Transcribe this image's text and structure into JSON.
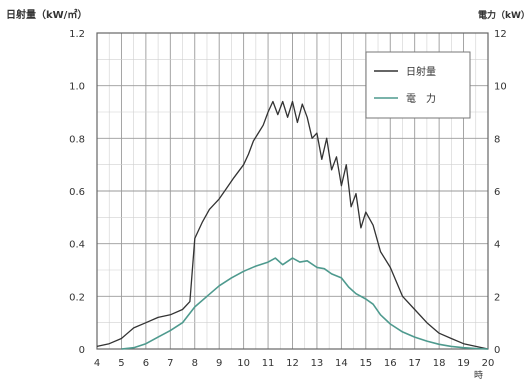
{
  "chart_data": {
    "type": "line",
    "left_axis_label": "日射量（kW/㎡）",
    "right_axis_label": "電力（kW）",
    "x_unit_label": "時",
    "x_ticks": [
      4,
      5,
      6,
      7,
      8,
      9,
      10,
      11,
      12,
      13,
      14,
      15,
      16,
      17,
      18,
      19,
      20
    ],
    "x_range": [
      4,
      20
    ],
    "left_ylim": [
      0,
      1.2
    ],
    "left_ticks": [
      "0",
      "0.2",
      "0.4",
      "0.6",
      "0.8",
      "1.0",
      "1.2"
    ],
    "right_ylim": [
      0,
      12
    ],
    "right_ticks": [
      "0",
      "2",
      "4",
      "6",
      "8",
      "10",
      "12"
    ],
    "grid": true,
    "legend_position": "top-right",
    "series": [
      {
        "name": "日射量",
        "axis": "left",
        "color": "#333333",
        "x": [
          4.0,
          4.5,
          5.0,
          5.5,
          6.0,
          6.5,
          7.0,
          7.5,
          7.8,
          8.0,
          8.3,
          8.6,
          9.0,
          9.3,
          9.6,
          10.0,
          10.2,
          10.4,
          10.6,
          10.8,
          11.0,
          11.2,
          11.4,
          11.6,
          11.8,
          12.0,
          12.2,
          12.4,
          12.6,
          12.8,
          13.0,
          13.2,
          13.4,
          13.6,
          13.8,
          14.0,
          14.2,
          14.4,
          14.6,
          14.8,
          15.0,
          15.3,
          15.6,
          16.0,
          16.5,
          17.0,
          17.5,
          18.0,
          18.5,
          19.0,
          19.5,
          20.0
        ],
        "y": [
          0.01,
          0.02,
          0.04,
          0.08,
          0.1,
          0.12,
          0.13,
          0.15,
          0.18,
          0.42,
          0.48,
          0.53,
          0.57,
          0.61,
          0.65,
          0.7,
          0.74,
          0.79,
          0.82,
          0.85,
          0.9,
          0.94,
          0.89,
          0.94,
          0.88,
          0.94,
          0.86,
          0.93,
          0.88,
          0.8,
          0.82,
          0.72,
          0.8,
          0.68,
          0.73,
          0.62,
          0.7,
          0.54,
          0.59,
          0.46,
          0.52,
          0.47,
          0.37,
          0.31,
          0.2,
          0.15,
          0.1,
          0.06,
          0.04,
          0.02,
          0.01,
          0.0
        ]
      },
      {
        "name": "電　力",
        "axis": "right",
        "color": "#4e9a8e",
        "x": [
          5.0,
          5.5,
          6.0,
          6.5,
          7.0,
          7.5,
          8.0,
          8.5,
          9.0,
          9.5,
          10.0,
          10.5,
          11.0,
          11.3,
          11.6,
          12.0,
          12.3,
          12.6,
          13.0,
          13.3,
          13.6,
          14.0,
          14.3,
          14.6,
          15.0,
          15.3,
          15.6,
          16.0,
          16.5,
          17.0,
          17.5,
          18.0,
          18.5,
          19.0,
          19.5,
          20.0
        ],
        "y": [
          0.0,
          0.05,
          0.2,
          0.45,
          0.7,
          1.0,
          1.6,
          2.0,
          2.4,
          2.7,
          2.95,
          3.15,
          3.3,
          3.45,
          3.2,
          3.45,
          3.3,
          3.35,
          3.1,
          3.05,
          2.85,
          2.7,
          2.35,
          2.1,
          1.9,
          1.7,
          1.3,
          0.95,
          0.65,
          0.45,
          0.3,
          0.18,
          0.1,
          0.05,
          0.02,
          0.0
        ]
      }
    ]
  }
}
